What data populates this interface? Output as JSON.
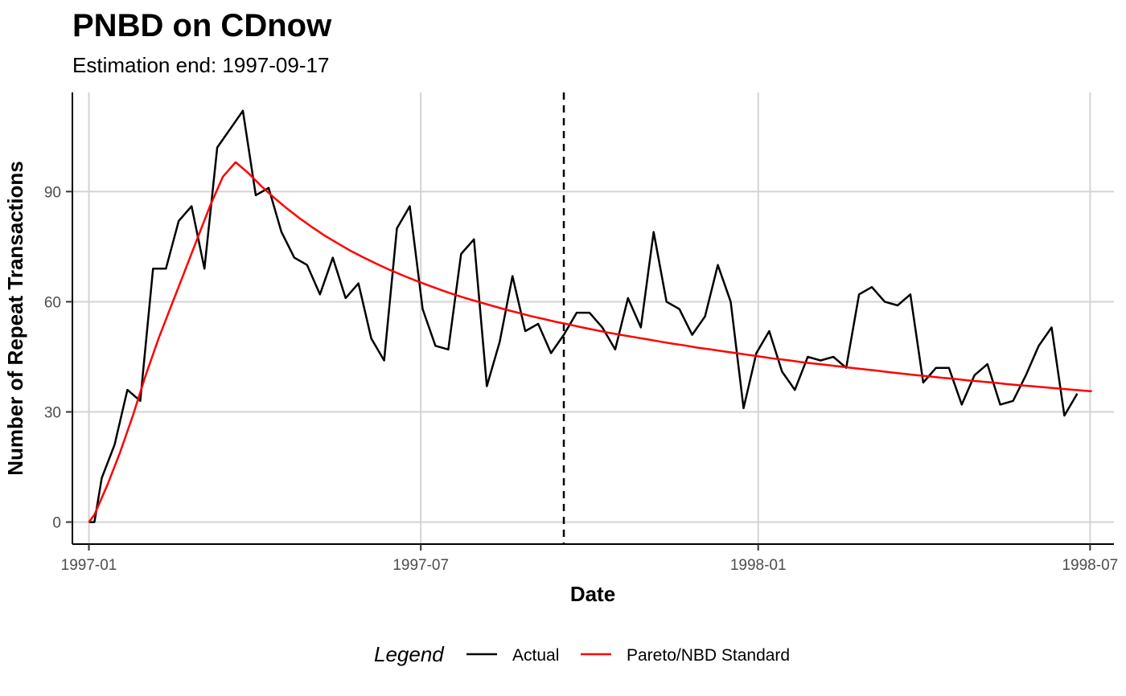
{
  "chart_data": {
    "type": "line",
    "title": "PNBD on CDnow",
    "subtitle": "Estimation end: 1997-09-17",
    "xlabel": "Date",
    "ylabel": "Number of Repeat Transactions",
    "x_ticks": [
      "1997-01",
      "1997-07",
      "1998-01",
      "1998-07"
    ],
    "y_ticks": [
      0,
      30,
      60,
      90
    ],
    "xlim": [
      "1996-12-23",
      "1998-07-14"
    ],
    "ylim": [
      -6,
      117
    ],
    "grid": true,
    "estimation_end": "1997-09-17",
    "legend": {
      "title": "Legend",
      "position": "bottom",
      "entries": [
        "Actual",
        "Pareto/NBD Standard"
      ]
    },
    "series": [
      {
        "name": "Actual",
        "color": "#000000",
        "points": [
          [
            "1997-01-01",
            0
          ],
          [
            "1997-01-04",
            0
          ],
          [
            "1997-01-08",
            12
          ],
          [
            "1997-01-15",
            21
          ],
          [
            "1997-01-22",
            36
          ],
          [
            "1997-01-29",
            33
          ],
          [
            "1997-02-05",
            69
          ],
          [
            "1997-02-12",
            69
          ],
          [
            "1997-02-19",
            82
          ],
          [
            "1997-02-26",
            86
          ],
          [
            "1997-03-05",
            69
          ],
          [
            "1997-03-12",
            102
          ],
          [
            "1997-03-19",
            107
          ],
          [
            "1997-03-26",
            112
          ],
          [
            "1997-04-02",
            89
          ],
          [
            "1997-04-09",
            91
          ],
          [
            "1997-04-16",
            79
          ],
          [
            "1997-04-23",
            72
          ],
          [
            "1997-04-30",
            70
          ],
          [
            "1997-05-07",
            62
          ],
          [
            "1997-05-14",
            72
          ],
          [
            "1997-05-21",
            61
          ],
          [
            "1997-05-28",
            65
          ],
          [
            "1997-06-04",
            50
          ],
          [
            "1997-06-11",
            44
          ],
          [
            "1997-06-18",
            80
          ],
          [
            "1997-06-25",
            86
          ],
          [
            "1997-07-02",
            58
          ],
          [
            "1997-07-09",
            48
          ],
          [
            "1997-07-16",
            47
          ],
          [
            "1997-07-23",
            73
          ],
          [
            "1997-07-30",
            77
          ],
          [
            "1997-08-06",
            37
          ],
          [
            "1997-08-13",
            49
          ],
          [
            "1997-08-20",
            67
          ],
          [
            "1997-08-27",
            52
          ],
          [
            "1997-09-03",
            54
          ],
          [
            "1997-09-10",
            46
          ],
          [
            "1997-09-17",
            51
          ],
          [
            "1997-09-24",
            57
          ],
          [
            "1997-10-01",
            57
          ],
          [
            "1997-10-08",
            53
          ],
          [
            "1997-10-15",
            47
          ],
          [
            "1997-10-22",
            61
          ],
          [
            "1997-10-29",
            53
          ],
          [
            "1997-11-05",
            79
          ],
          [
            "1997-11-12",
            60
          ],
          [
            "1997-11-19",
            58
          ],
          [
            "1997-11-26",
            51
          ],
          [
            "1997-12-03",
            56
          ],
          [
            "1997-12-10",
            70
          ],
          [
            "1997-12-17",
            60
          ],
          [
            "1997-12-24",
            31
          ],
          [
            "1997-12-31",
            46
          ],
          [
            "1998-01-07",
            52
          ],
          [
            "1998-01-14",
            41
          ],
          [
            "1998-01-21",
            36
          ],
          [
            "1998-01-28",
            45
          ],
          [
            "1998-02-04",
            44
          ],
          [
            "1998-02-11",
            45
          ],
          [
            "1998-02-18",
            42
          ],
          [
            "1998-02-25",
            62
          ],
          [
            "1998-03-04",
            64
          ],
          [
            "1998-03-11",
            60
          ],
          [
            "1998-03-18",
            59
          ],
          [
            "1998-03-25",
            62
          ],
          [
            "1998-04-01",
            38
          ],
          [
            "1998-04-08",
            42
          ],
          [
            "1998-04-15",
            42
          ],
          [
            "1998-04-22",
            32
          ],
          [
            "1998-04-29",
            40
          ],
          [
            "1998-05-06",
            43
          ],
          [
            "1998-05-13",
            32
          ],
          [
            "1998-05-20",
            33
          ],
          [
            "1998-05-27",
            40
          ],
          [
            "1998-06-03",
            48
          ],
          [
            "1998-06-10",
            53
          ],
          [
            "1998-06-17",
            29
          ],
          [
            "1998-06-24",
            35
          ]
        ]
      },
      {
        "name": "Pareto/NBD Standard",
        "color": "#ff0000",
        "points": [
          [
            "1997-01-01",
            0
          ],
          [
            "1997-01-04",
            2
          ],
          [
            "1997-01-11",
            10
          ],
          [
            "1997-01-18",
            19
          ],
          [
            "1997-01-25",
            29
          ],
          [
            "1997-02-01",
            40
          ],
          [
            "1997-02-08",
            50
          ],
          [
            "1997-02-15",
            59
          ],
          [
            "1997-02-22",
            68
          ],
          [
            "1997-03-01",
            77
          ],
          [
            "1997-03-08",
            86
          ],
          [
            "1997-03-15",
            94
          ],
          [
            "1997-03-22",
            98
          ],
          [
            "1997-03-29",
            95
          ],
          [
            "1997-04-05",
            91.5
          ],
          [
            "1997-04-12",
            88.3
          ],
          [
            "1997-04-19",
            85.4
          ],
          [
            "1997-04-26",
            82.7
          ],
          [
            "1997-05-03",
            80.2
          ],
          [
            "1997-05-10",
            77.9
          ],
          [
            "1997-05-17",
            75.8
          ],
          [
            "1997-05-24",
            73.8
          ],
          [
            "1997-05-31",
            72.0
          ],
          [
            "1997-06-07",
            70.3
          ],
          [
            "1997-06-14",
            68.7
          ],
          [
            "1997-06-21",
            67.2
          ],
          [
            "1997-06-28",
            65.8
          ],
          [
            "1997-07-05",
            64.5
          ],
          [
            "1997-07-12",
            63.2
          ],
          [
            "1997-07-19",
            62.0
          ],
          [
            "1997-07-26",
            60.9
          ],
          [
            "1997-08-02",
            59.9
          ],
          [
            "1997-08-09",
            58.9
          ],
          [
            "1997-08-16",
            57.9
          ],
          [
            "1997-08-23",
            57.0
          ],
          [
            "1997-08-30",
            56.1
          ],
          [
            "1997-09-06",
            55.3
          ],
          [
            "1997-09-13",
            54.5
          ],
          [
            "1997-09-20",
            53.8
          ],
          [
            "1997-09-27",
            53.0
          ],
          [
            "1997-10-04",
            52.3
          ],
          [
            "1997-10-11",
            51.6
          ],
          [
            "1997-10-18",
            51.0
          ],
          [
            "1997-10-25",
            50.4
          ],
          [
            "1997-11-01",
            49.8
          ],
          [
            "1997-11-08",
            49.2
          ],
          [
            "1997-11-15",
            48.6
          ],
          [
            "1997-11-22",
            48.1
          ],
          [
            "1997-11-29",
            47.5
          ],
          [
            "1997-12-06",
            47.0
          ],
          [
            "1997-12-13",
            46.5
          ],
          [
            "1997-12-20",
            46.0
          ],
          [
            "1997-12-27",
            45.5
          ],
          [
            "1998-01-03",
            45.0
          ],
          [
            "1998-01-10",
            44.5
          ],
          [
            "1998-01-17",
            44.1
          ],
          [
            "1998-01-24",
            43.6
          ],
          [
            "1998-01-31",
            43.2
          ],
          [
            "1998-02-07",
            42.8
          ],
          [
            "1998-02-14",
            42.4
          ],
          [
            "1998-02-21",
            42.0
          ],
          [
            "1998-02-28",
            41.6
          ],
          [
            "1998-03-07",
            41.2
          ],
          [
            "1998-03-14",
            40.8
          ],
          [
            "1998-03-21",
            40.4
          ],
          [
            "1998-03-28",
            40.0
          ],
          [
            "1998-04-04",
            39.7
          ],
          [
            "1998-04-11",
            39.3
          ],
          [
            "1998-04-18",
            39.0
          ],
          [
            "1998-04-25",
            38.6
          ],
          [
            "1998-05-02",
            38.3
          ],
          [
            "1998-05-09",
            38.0
          ],
          [
            "1998-05-16",
            37.6
          ],
          [
            "1998-05-23",
            37.3
          ],
          [
            "1998-05-30",
            37.0
          ],
          [
            "1998-06-06",
            36.7
          ],
          [
            "1998-06-13",
            36.4
          ],
          [
            "1998-06-20",
            36.1
          ],
          [
            "1998-06-27",
            35.8
          ],
          [
            "1998-07-02",
            35.6
          ]
        ]
      }
    ]
  },
  "colors": {
    "actual": "#000000",
    "model": "#ff0000",
    "grid": "#d3d3d3",
    "axis": "#000000",
    "tick_label": "#4d4d4d"
  }
}
